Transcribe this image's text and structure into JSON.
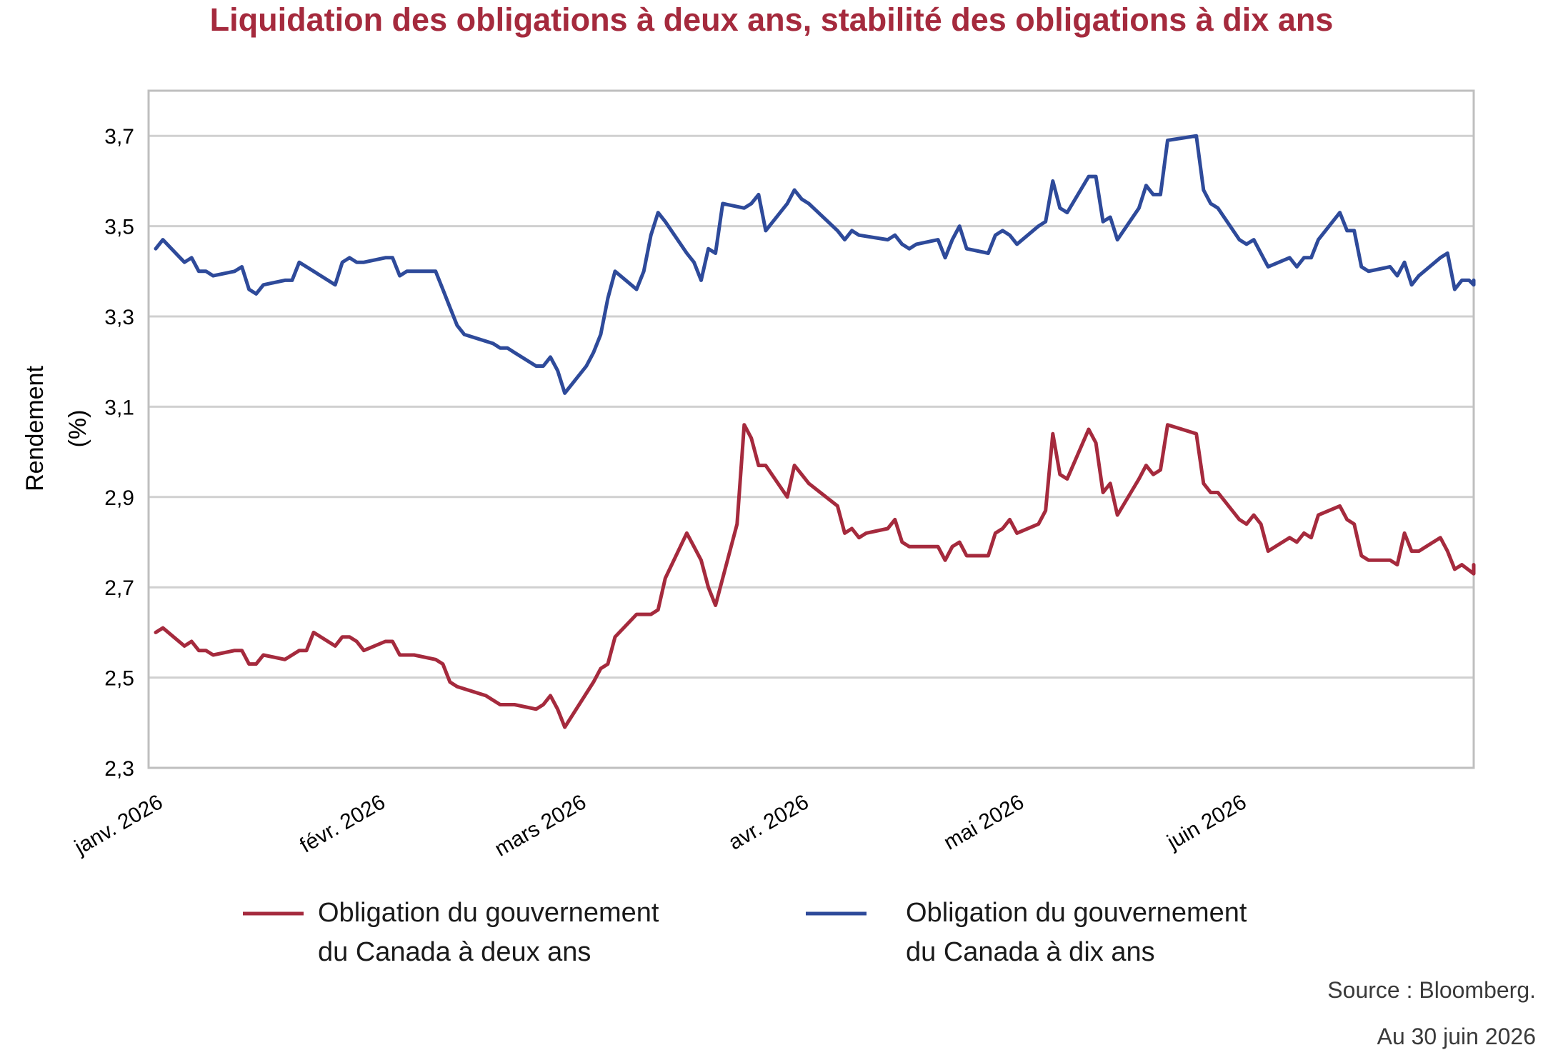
{
  "chart_data": {
    "type": "line",
    "title": "Liquidation des obligations à deux ans, stabilité des obligations à dix ans",
    "ylabel_lines": [
      "Rendement",
      "(%)"
    ],
    "xlabel": "",
    "ylim": [
      2.3,
      3.8
    ],
    "y_ticks": [
      {
        "value": 2.3,
        "label": "2,3"
      },
      {
        "value": 2.5,
        "label": "2,5"
      },
      {
        "value": 2.7,
        "label": "2,7"
      },
      {
        "value": 2.9,
        "label": "2,9"
      },
      {
        "value": 3.1,
        "label": "3,1"
      },
      {
        "value": 3.3,
        "label": "3,3"
      },
      {
        "value": 3.5,
        "label": "3,5"
      },
      {
        "value": 3.7,
        "label": "3,7"
      }
    ],
    "x_range": [
      "2026-01-01",
      "2026-06-30"
    ],
    "x_ticks": [
      {
        "date": "2026-01-01",
        "label": "janv. 2026"
      },
      {
        "date": "2026-02-01",
        "label": "févr. 2026"
      },
      {
        "date": "2026-03-01",
        "label": "mars 2026"
      },
      {
        "date": "2026-04-01",
        "label": "avr. 2026"
      },
      {
        "date": "2026-05-01",
        "label": "mai 2026"
      },
      {
        "date": "2026-06-01",
        "label": "juin 2026"
      }
    ],
    "grid": true,
    "legend_position": "bottom",
    "series": [
      {
        "name_lines": [
          "Obligation du gouvernement",
          "du Canada à deux ans"
        ],
        "color": "#a52a3d",
        "points": [
          [
            "2026-01-01",
            2.6
          ],
          [
            "2026-01-02",
            2.61
          ],
          [
            "2026-01-05",
            2.57
          ],
          [
            "2026-01-06",
            2.58
          ],
          [
            "2026-01-07",
            2.56
          ],
          [
            "2026-01-08",
            2.56
          ],
          [
            "2026-01-09",
            2.55
          ],
          [
            "2026-01-12",
            2.56
          ],
          [
            "2026-01-13",
            2.56
          ],
          [
            "2026-01-14",
            2.53
          ],
          [
            "2026-01-15",
            2.53
          ],
          [
            "2026-01-16",
            2.55
          ],
          [
            "2026-01-19",
            2.54
          ],
          [
            "2026-01-20",
            2.55
          ],
          [
            "2026-01-21",
            2.56
          ],
          [
            "2026-01-22",
            2.56
          ],
          [
            "2026-01-23",
            2.6
          ],
          [
            "2026-01-26",
            2.57
          ],
          [
            "2026-01-27",
            2.59
          ],
          [
            "2026-01-28",
            2.59
          ],
          [
            "2026-01-29",
            2.58
          ],
          [
            "2026-01-30",
            2.56
          ],
          [
            "2026-02-02",
            2.58
          ],
          [
            "2026-02-03",
            2.58
          ],
          [
            "2026-02-04",
            2.55
          ],
          [
            "2026-02-05",
            2.55
          ],
          [
            "2026-02-06",
            2.55
          ],
          [
            "2026-02-09",
            2.54
          ],
          [
            "2026-02-10",
            2.53
          ],
          [
            "2026-02-11",
            2.49
          ],
          [
            "2026-02-12",
            2.48
          ],
          [
            "2026-02-16",
            2.46
          ],
          [
            "2026-02-17",
            2.45
          ],
          [
            "2026-02-18",
            2.44
          ],
          [
            "2026-02-19",
            2.44
          ],
          [
            "2026-02-20",
            2.44
          ],
          [
            "2026-02-23",
            2.43
          ],
          [
            "2026-02-24",
            2.44
          ],
          [
            "2026-02-25",
            2.46
          ],
          [
            "2026-02-26",
            2.43
          ],
          [
            "2026-02-27",
            2.39
          ],
          [
            "2026-03-03",
            2.49
          ],
          [
            "2026-03-04",
            2.52
          ],
          [
            "2026-03-05",
            2.53
          ],
          [
            "2026-03-06",
            2.59
          ],
          [
            "2026-03-09",
            2.64
          ],
          [
            "2026-03-10",
            2.64
          ],
          [
            "2026-03-11",
            2.64
          ],
          [
            "2026-03-12",
            2.65
          ],
          [
            "2026-03-13",
            2.72
          ],
          [
            "2026-03-16",
            2.82
          ],
          [
            "2026-03-17",
            2.79
          ],
          [
            "2026-03-18",
            2.76
          ],
          [
            "2026-03-19",
            2.7
          ],
          [
            "2026-03-20",
            2.66
          ],
          [
            "2026-03-23",
            2.84
          ],
          [
            "2026-03-24",
            3.06
          ],
          [
            "2026-03-25",
            3.03
          ],
          [
            "2026-03-26",
            2.97
          ],
          [
            "2026-03-27",
            2.97
          ],
          [
            "2026-03-30",
            2.9
          ],
          [
            "2026-03-31",
            2.97
          ],
          [
            "2026-04-01",
            2.95
          ],
          [
            "2026-04-02",
            2.93
          ],
          [
            "2026-04-06",
            2.88
          ],
          [
            "2026-04-07",
            2.82
          ],
          [
            "2026-04-08",
            2.83
          ],
          [
            "2026-04-09",
            2.81
          ],
          [
            "2026-04-10",
            2.82
          ],
          [
            "2026-04-13",
            2.83
          ],
          [
            "2026-04-14",
            2.85
          ],
          [
            "2026-04-15",
            2.8
          ],
          [
            "2026-04-16",
            2.79
          ],
          [
            "2026-04-17",
            2.79
          ],
          [
            "2026-04-20",
            2.79
          ],
          [
            "2026-04-21",
            2.76
          ],
          [
            "2026-04-22",
            2.79
          ],
          [
            "2026-04-23",
            2.8
          ],
          [
            "2026-04-24",
            2.77
          ],
          [
            "2026-04-27",
            2.77
          ],
          [
            "2026-04-28",
            2.82
          ],
          [
            "2026-04-29",
            2.83
          ],
          [
            "2026-04-30",
            2.85
          ],
          [
            "2026-05-01",
            2.82
          ],
          [
            "2026-05-04",
            2.84
          ],
          [
            "2026-05-05",
            2.87
          ],
          [
            "2026-05-06",
            3.04
          ],
          [
            "2026-05-07",
            2.95
          ],
          [
            "2026-05-08",
            2.94
          ],
          [
            "2026-05-11",
            3.05
          ],
          [
            "2026-05-12",
            3.02
          ],
          [
            "2026-05-13",
            2.91
          ],
          [
            "2026-05-14",
            2.93
          ],
          [
            "2026-05-15",
            2.86
          ],
          [
            "2026-05-18",
            2.94
          ],
          [
            "2026-05-19",
            2.97
          ],
          [
            "2026-05-20",
            2.95
          ],
          [
            "2026-05-21",
            2.96
          ],
          [
            "2026-05-22",
            3.06
          ],
          [
            "2026-05-26",
            3.04
          ],
          [
            "2026-05-27",
            2.93
          ],
          [
            "2026-05-28",
            2.91
          ],
          [
            "2026-05-29",
            2.91
          ],
          [
            "2026-06-01",
            2.85
          ],
          [
            "2026-06-02",
            2.84
          ],
          [
            "2026-06-03",
            2.86
          ],
          [
            "2026-06-04",
            2.84
          ],
          [
            "2026-06-05",
            2.78
          ],
          [
            "2026-06-08",
            2.81
          ],
          [
            "2026-06-09",
            2.8
          ],
          [
            "2026-06-10",
            2.82
          ],
          [
            "2026-06-11",
            2.81
          ],
          [
            "2026-06-12",
            2.86
          ],
          [
            "2026-06-15",
            2.88
          ],
          [
            "2026-06-16",
            2.85
          ],
          [
            "2026-06-17",
            2.84
          ],
          [
            "2026-06-18",
            2.77
          ],
          [
            "2026-06-19",
            2.76
          ],
          [
            "2026-06-22",
            2.76
          ],
          [
            "2026-06-23",
            2.75
          ],
          [
            "2026-06-24",
            2.82
          ],
          [
            "2026-06-25",
            2.78
          ],
          [
            "2026-06-26",
            2.78
          ],
          [
            "2026-06-29",
            2.81
          ],
          [
            "2026-06-30",
            2.78
          ],
          [
            "2026-07-01",
            2.74
          ],
          [
            "2026-07-02",
            2.75
          ],
          [
            "2026-07-06",
            2.73
          ],
          [
            "2026-07-07",
            2.75
          ]
        ]
      },
      {
        "name_lines": [
          "Obligation du gouvernement",
          "du Canada à dix ans"
        ],
        "color": "#2e4a9a",
        "points": [
          [
            "2026-01-01",
            3.45
          ],
          [
            "2026-01-02",
            3.47
          ],
          [
            "2026-01-05",
            3.42
          ],
          [
            "2026-01-06",
            3.43
          ],
          [
            "2026-01-07",
            3.4
          ],
          [
            "2026-01-08",
            3.4
          ],
          [
            "2026-01-09",
            3.39
          ],
          [
            "2026-01-12",
            3.4
          ],
          [
            "2026-01-13",
            3.41
          ],
          [
            "2026-01-14",
            3.36
          ],
          [
            "2026-01-15",
            3.35
          ],
          [
            "2026-01-16",
            3.37
          ],
          [
            "2026-01-19",
            3.38
          ],
          [
            "2026-01-20",
            3.38
          ],
          [
            "2026-01-21",
            3.42
          ],
          [
            "2026-01-22",
            3.41
          ],
          [
            "2026-01-23",
            3.4
          ],
          [
            "2026-01-26",
            3.37
          ],
          [
            "2026-01-27",
            3.42
          ],
          [
            "2026-01-28",
            3.43
          ],
          [
            "2026-01-29",
            3.42
          ],
          [
            "2026-01-30",
            3.42
          ],
          [
            "2026-02-02",
            3.43
          ],
          [
            "2026-02-03",
            3.43
          ],
          [
            "2026-02-04",
            3.39
          ],
          [
            "2026-02-05",
            3.4
          ],
          [
            "2026-02-06",
            3.4
          ],
          [
            "2026-02-09",
            3.4
          ],
          [
            "2026-02-10",
            3.36
          ],
          [
            "2026-02-11",
            3.32
          ],
          [
            "2026-02-12",
            3.28
          ],
          [
            "2026-02-13",
            3.26
          ],
          [
            "2026-02-17",
            3.24
          ],
          [
            "2026-02-18",
            3.23
          ],
          [
            "2026-02-19",
            3.23
          ],
          [
            "2026-02-20",
            3.22
          ],
          [
            "2026-02-23",
            3.19
          ],
          [
            "2026-02-24",
            3.19
          ],
          [
            "2026-02-25",
            3.21
          ],
          [
            "2026-02-26",
            3.18
          ],
          [
            "2026-02-27",
            3.13
          ],
          [
            "2026-03-02",
            3.19
          ],
          [
            "2026-03-03",
            3.22
          ],
          [
            "2026-03-04",
            3.26
          ],
          [
            "2026-03-05",
            3.34
          ],
          [
            "2026-03-06",
            3.4
          ],
          [
            "2026-03-09",
            3.36
          ],
          [
            "2026-03-10",
            3.4
          ],
          [
            "2026-03-11",
            3.48
          ],
          [
            "2026-03-12",
            3.53
          ],
          [
            "2026-03-13",
            3.51
          ],
          [
            "2026-03-16",
            3.44
          ],
          [
            "2026-03-17",
            3.42
          ],
          [
            "2026-03-18",
            3.38
          ],
          [
            "2026-03-19",
            3.45
          ],
          [
            "2026-03-20",
            3.44
          ],
          [
            "2026-03-21",
            3.55
          ],
          [
            "2026-03-24",
            3.54
          ],
          [
            "2026-03-25",
            3.55
          ],
          [
            "2026-03-26",
            3.57
          ],
          [
            "2026-03-27",
            3.49
          ],
          [
            "2026-03-30",
            3.55
          ],
          [
            "2026-03-31",
            3.58
          ],
          [
            "2026-04-01",
            3.56
          ],
          [
            "2026-04-02",
            3.55
          ],
          [
            "2026-04-06",
            3.49
          ],
          [
            "2026-04-07",
            3.47
          ],
          [
            "2026-04-08",
            3.49
          ],
          [
            "2026-04-09",
            3.48
          ],
          [
            "2026-04-13",
            3.47
          ],
          [
            "2026-04-14",
            3.48
          ],
          [
            "2026-04-15",
            3.46
          ],
          [
            "2026-04-16",
            3.45
          ],
          [
            "2026-04-17",
            3.46
          ],
          [
            "2026-04-20",
            3.47
          ],
          [
            "2026-04-21",
            3.43
          ],
          [
            "2026-04-22",
            3.47
          ],
          [
            "2026-04-23",
            3.5
          ],
          [
            "2026-04-24",
            3.45
          ],
          [
            "2026-04-27",
            3.44
          ],
          [
            "2026-04-28",
            3.48
          ],
          [
            "2026-04-29",
            3.49
          ],
          [
            "2026-04-30",
            3.48
          ],
          [
            "2026-05-01",
            3.46
          ],
          [
            "2026-05-04",
            3.5
          ],
          [
            "2026-05-05",
            3.51
          ],
          [
            "2026-05-06",
            3.6
          ],
          [
            "2026-05-07",
            3.54
          ],
          [
            "2026-05-08",
            3.53
          ],
          [
            "2026-05-11",
            3.61
          ],
          [
            "2026-05-12",
            3.61
          ],
          [
            "2026-05-13",
            3.51
          ],
          [
            "2026-05-14",
            3.52
          ],
          [
            "2026-05-15",
            3.47
          ],
          [
            "2026-05-18",
            3.54
          ],
          [
            "2026-05-19",
            3.59
          ],
          [
            "2026-05-20",
            3.57
          ],
          [
            "2026-05-21",
            3.57
          ],
          [
            "2026-05-22",
            3.69
          ],
          [
            "2026-05-26",
            3.7
          ],
          [
            "2026-05-27",
            3.58
          ],
          [
            "2026-05-28",
            3.55
          ],
          [
            "2026-05-29",
            3.54
          ],
          [
            "2026-06-01",
            3.47
          ],
          [
            "2026-06-02",
            3.46
          ],
          [
            "2026-06-03",
            3.47
          ],
          [
            "2026-06-04",
            3.44
          ],
          [
            "2026-06-05",
            3.41
          ],
          [
            "2026-06-08",
            3.43
          ],
          [
            "2026-06-09",
            3.41
          ],
          [
            "2026-06-10",
            3.43
          ],
          [
            "2026-06-11",
            3.43
          ],
          [
            "2026-06-12",
            3.47
          ],
          [
            "2026-06-15",
            3.53
          ],
          [
            "2026-06-16",
            3.49
          ],
          [
            "2026-06-17",
            3.49
          ],
          [
            "2026-06-18",
            3.41
          ],
          [
            "2026-06-19",
            3.4
          ],
          [
            "2026-06-22",
            3.41
          ],
          [
            "2026-06-23",
            3.39
          ],
          [
            "2026-06-24",
            3.42
          ],
          [
            "2026-06-25",
            3.37
          ],
          [
            "2026-06-26",
            3.39
          ],
          [
            "2026-06-29",
            3.43
          ],
          [
            "2026-06-30",
            3.44
          ],
          [
            "2026-07-01",
            3.36
          ],
          [
            "2026-07-02",
            3.38
          ],
          [
            "2026-07-03",
            3.38
          ],
          [
            "2026-07-06",
            3.37
          ],
          [
            "2026-07-07",
            3.38
          ]
        ]
      }
    ]
  },
  "notes": {
    "source": "Source : Bloomberg.",
    "date": "Au 30 juin 2026"
  }
}
